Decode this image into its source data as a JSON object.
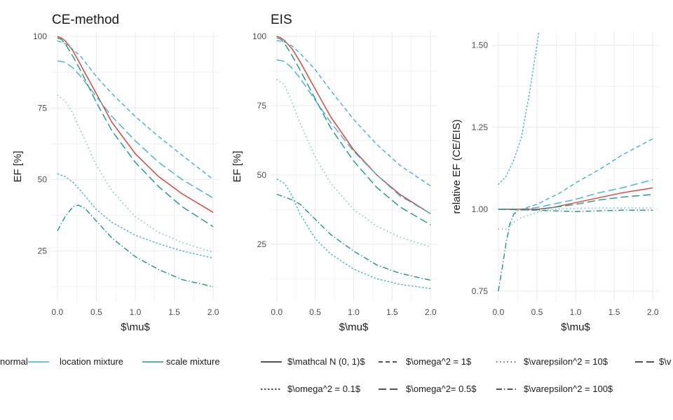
{
  "colors": {
    "normal": "#E0392E",
    "location mixture": "#3FB2CF",
    "scale mixture": "#1A9982",
    "grid": "#EBEBEB"
  },
  "chart_data": [
    {
      "type": "line",
      "title": "CE-method",
      "xlabel": "$\\mu$",
      "ylabel": "EF [%]",
      "xlim": [
        -0.08,
        2.08
      ],
      "ylim": [
        7.5,
        101.5
      ],
      "xticks": [
        0.0,
        0.5,
        1.0,
        1.5,
        2.0
      ],
      "xtick_labels": [
        "0.0",
        "0.5",
        "1.0",
        "1.5",
        "2.0"
      ],
      "yticks": [
        25,
        50,
        75,
        100
      ],
      "ytick_labels": [
        "25",
        "50",
        "75",
        "100"
      ],
      "grid": true,
      "series": [
        {
          "distribution": "normal",
          "variant": "solid",
          "x": [
            0,
            0.05,
            0.1,
            0.2,
            0.3,
            0.5,
            0.7,
            1.0,
            1.3,
            1.6,
            2.0
          ],
          "y": [
            100,
            99.5,
            98.5,
            95,
            90,
            80,
            70,
            59,
            51,
            45,
            38.5
          ]
        },
        {
          "distribution": "location mixture",
          "variant": "o1",
          "x": [
            0,
            0.1,
            0.2,
            0.3,
            0.5,
            0.7,
            1.0,
            1.3,
            1.6,
            2.0
          ],
          "y": [
            98.5,
            97.5,
            95.5,
            93,
            86,
            80,
            72,
            65,
            58.5,
            50
          ]
        },
        {
          "distribution": "location mixture",
          "variant": "o0.5",
          "x": [
            0,
            0.1,
            0.2,
            0.3,
            0.5,
            0.7,
            1.0,
            1.3,
            1.6,
            2.0
          ],
          "y": [
            91.5,
            91,
            89,
            86,
            79,
            72,
            63.5,
            56,
            50,
            43.5
          ]
        },
        {
          "distribution": "scale mixture",
          "variant": "o0.5",
          "x": [
            0,
            0.05,
            0.1,
            0.2,
            0.3,
            0.5,
            0.7,
            1.0,
            1.3,
            1.6,
            2.0
          ],
          "y": [
            99.5,
            99,
            97.5,
            93,
            88,
            77,
            67,
            56,
            47.5,
            40.5,
            33.5
          ]
        },
        {
          "distribution": "location mixture",
          "variant": "e10",
          "x": [
            0,
            0.1,
            0.2,
            0.3,
            0.5,
            0.7,
            1.0,
            1.3,
            1.6,
            2.0
          ],
          "y": [
            79.5,
            77.5,
            73,
            67,
            55,
            46,
            37,
            31.5,
            28,
            24.5
          ]
        },
        {
          "distribution": "location mixture",
          "variant": "o0.1",
          "x": [
            0,
            0.1,
            0.2,
            0.3,
            0.5,
            0.7,
            1.0,
            1.3,
            1.6,
            2.0
          ],
          "y": [
            52,
            51,
            49,
            46,
            39.5,
            35,
            30.5,
            27.5,
            25,
            22.5
          ]
        },
        {
          "distribution": "scale mixture",
          "variant": "e100",
          "x": [
            0,
            0.1,
            0.2,
            0.27,
            0.35,
            0.5,
            0.7,
            1.0,
            1.3,
            1.6,
            2.0
          ],
          "y": [
            32,
            37,
            40.5,
            41,
            40,
            35.5,
            29.5,
            23,
            18.5,
            15,
            12.5
          ]
        }
      ]
    },
    {
      "type": "line",
      "title": "EIS",
      "xlabel": "$\\mu$",
      "ylabel": "EF [%]",
      "xlim": [
        -0.08,
        2.08
      ],
      "ylim": [
        4.5,
        101.5
      ],
      "xticks": [
        0.0,
        0.5,
        1.0,
        1.5,
        2.0
      ],
      "xtick_labels": [
        "0.0",
        "0.5",
        "1.0",
        "1.5",
        "2.0"
      ],
      "yticks": [
        25,
        50,
        75,
        100
      ],
      "ytick_labels": [
        "25",
        "50",
        "75",
        "100"
      ],
      "grid": true,
      "series": [
        {
          "distribution": "normal",
          "variant": "solid",
          "x": [
            0,
            0.05,
            0.1,
            0.2,
            0.3,
            0.5,
            0.7,
            1.0,
            1.3,
            1.6,
            2.0
          ],
          "y": [
            100,
            99.5,
            98.5,
            95.5,
            91,
            81,
            71,
            59,
            50,
            43,
            36
          ]
        },
        {
          "distribution": "location mixture",
          "variant": "o1",
          "x": [
            0,
            0.1,
            0.2,
            0.3,
            0.5,
            0.7,
            1.0,
            1.3,
            1.6,
            2.0
          ],
          "y": [
            98.5,
            98,
            96.5,
            94,
            88,
            80.5,
            70,
            61,
            53.5,
            46
          ]
        },
        {
          "distribution": "location mixture",
          "variant": "o0.5",
          "x": [
            0,
            0.1,
            0.2,
            0.3,
            0.5,
            0.7,
            1.0,
            1.3,
            1.6,
            2.0
          ],
          "y": [
            91.5,
            91,
            88.5,
            85,
            77,
            69,
            58.5,
            50,
            42.5,
            36
          ]
        },
        {
          "distribution": "scale mixture",
          "variant": "o0.5",
          "x": [
            0,
            0.05,
            0.1,
            0.2,
            0.3,
            0.5,
            0.7,
            1.0,
            1.3,
            1.6,
            2.0
          ],
          "y": [
            99.5,
            99,
            97.5,
            93,
            88,
            77.5,
            67,
            55,
            45.5,
            38.5,
            32
          ]
        },
        {
          "distribution": "location mixture",
          "variant": "e10",
          "x": [
            0,
            0.1,
            0.2,
            0.3,
            0.5,
            0.7,
            1.0,
            1.3,
            1.6,
            2.0
          ],
          "y": [
            84.5,
            82.5,
            76,
            69,
            56.5,
            47,
            37.5,
            31.5,
            27.5,
            24
          ]
        },
        {
          "distribution": "location mixture",
          "variant": "o0.1",
          "x": [
            0,
            0.1,
            0.2,
            0.3,
            0.5,
            0.7,
            1.0,
            1.3,
            1.6,
            2.0
          ],
          "y": [
            48.5,
            47,
            42.5,
            36,
            27,
            21.5,
            16,
            12.5,
            10.5,
            9
          ]
        },
        {
          "distribution": "scale mixture",
          "variant": "e100",
          "x": [
            0,
            0.1,
            0.2,
            0.3,
            0.5,
            0.7,
            1.0,
            1.3,
            1.6,
            2.0
          ],
          "y": [
            43,
            42,
            41,
            39.5,
            34,
            28.5,
            22.5,
            17.5,
            14.5,
            12
          ]
        }
      ]
    },
    {
      "type": "line",
      "title": "",
      "xlabel": "$\\mu$",
      "ylabel": "relative EF (CE/EIS)",
      "xlim": [
        -0.08,
        2.08
      ],
      "ylim": [
        0.72,
        1.54
      ],
      "xticks": [
        0.0,
        0.5,
        1.0,
        1.5,
        2.0
      ],
      "xtick_labels": [
        "0.0",
        "0.5",
        "1.0",
        "1.5",
        "2.0"
      ],
      "yticks": [
        0.75,
        1.0,
        1.25,
        1.5
      ],
      "ytick_labels": [
        "0.75",
        "1.00",
        "1.25",
        "1.50"
      ],
      "grid": true,
      "series": [
        {
          "distribution": "location mixture",
          "variant": "o0.1",
          "x": [
            0,
            0.1,
            0.2,
            0.3,
            0.4,
            0.5,
            0.55
          ],
          "y": [
            1.075,
            1.1,
            1.15,
            1.22,
            1.35,
            1.5,
            1.58
          ]
        },
        {
          "distribution": "location mixture",
          "variant": "o1",
          "x": [
            0,
            0.3,
            0.5,
            0.8,
            1.0,
            1.3,
            1.6,
            1.8,
            2.0
          ],
          "y": [
            1.0,
            1.0,
            1.015,
            1.05,
            1.08,
            1.12,
            1.165,
            1.19,
            1.215
          ]
        },
        {
          "distribution": "location mixture",
          "variant": "o0.5",
          "x": [
            0,
            0.3,
            0.5,
            0.7,
            1.0,
            1.3,
            1.6,
            2.0
          ],
          "y": [
            1.0,
            1.0,
            1.005,
            1.015,
            1.03,
            1.05,
            1.065,
            1.09
          ]
        },
        {
          "distribution": "normal",
          "variant": "solid",
          "x": [
            0,
            0.3,
            0.5,
            0.7,
            1.0,
            1.3,
            1.6,
            2.0
          ],
          "y": [
            1.0,
            1.0,
            1.0,
            1.005,
            1.02,
            1.035,
            1.05,
            1.065
          ]
        },
        {
          "distribution": "scale mixture",
          "variant": "o0.5",
          "x": [
            0,
            0.3,
            0.5,
            0.7,
            1.0,
            1.3,
            1.6,
            2.0
          ],
          "y": [
            1.0,
            0.998,
            0.998,
            1.005,
            1.015,
            1.028,
            1.037,
            1.045
          ]
        },
        {
          "distribution": "location mixture",
          "variant": "e10",
          "x": [
            0,
            0.1,
            0.2,
            0.3,
            0.5,
            0.7,
            1.0,
            1.3,
            1.6,
            2.0
          ],
          "y": [
            0.94,
            0.94,
            0.96,
            0.975,
            0.99,
            1.0,
            1.003,
            1.004,
            1.004,
            1.004
          ]
        },
        {
          "distribution": "scale mixture",
          "variant": "e100",
          "x": [
            0,
            0.05,
            0.1,
            0.15,
            0.2,
            0.25,
            0.3,
            0.5,
            0.7,
            1.0,
            1.3,
            1.6,
            2.0
          ],
          "y": [
            0.75,
            0.82,
            0.895,
            0.955,
            0.985,
            0.995,
            0.998,
            0.997,
            0.995,
            0.993,
            0.995,
            0.997,
            0.997
          ]
        }
      ]
    }
  ],
  "legend": {
    "distribution_items": [
      {
        "key": "normal",
        "label": "normal"
      },
      {
        "key": "location mixture",
        "label": "location mixture"
      },
      {
        "key": "scale mixture",
        "label": "scale mixture"
      }
    ],
    "variant_items": [
      {
        "key": "solid",
        "label": "$\\mathcal N (0, 1)$"
      },
      {
        "key": "o1",
        "label": "$\\omega^2 = 1$"
      },
      {
        "key": "e10",
        "label": "$\\varepsilon^2 = 10$"
      },
      {
        "key": "o0.1",
        "label": "$\\omega^2 = 0.1$"
      },
      {
        "key": "o0.5",
        "label": "$\\omega^2= 0.5$"
      },
      {
        "key": "e100",
        "label": "$\\varepsilon^2 = 100$"
      }
    ],
    "overflow_label": "$\\v"
  }
}
